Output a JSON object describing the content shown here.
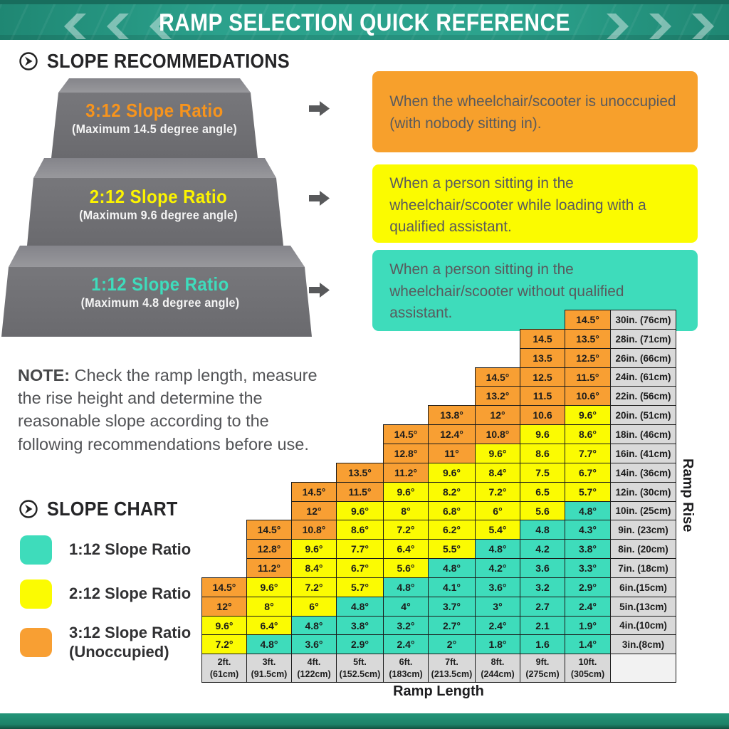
{
  "banner": {
    "title": "RAMP SELECTION QUICK REFERENCE"
  },
  "sections": {
    "recommendations": {
      "title": "SLOPE RECOMMEDATIONS"
    },
    "chart": {
      "title": "SLOPE CHART"
    }
  },
  "steps": [
    {
      "title": "3:12 Slope Ratio",
      "subtitle": "(Maximum 14.5 degree angle)",
      "title_color": "#F7941D"
    },
    {
      "title": "2:12 Slope Ratio",
      "subtitle": "(Maximum 9.6 degree angle)",
      "title_color": "#FCF400"
    },
    {
      "title": "1:12 Slope Ratio",
      "subtitle": "(Maximum 4.8 degree angle)",
      "title_color": "#3EDCBC"
    }
  ],
  "boxes": [
    {
      "color_name": "orange",
      "bg": "#F7A02C",
      "text": "When the wheelchair/scooter is unoccupied\n(with nobody sitting in)."
    },
    {
      "color_name": "yellow",
      "bg": "#FBFB00",
      "text": "When a person sitting in the\nwheelchair/scooter while loading with a\nqualified assistant."
    },
    {
      "color_name": "teal",
      "bg": "#3EDCBB",
      "text": "When a person sitting in the\nwheelchair/scooter without qualified\nassistant."
    }
  ],
  "note": {
    "label": "NOTE:",
    "body": " Check the ramp length, measure\nthe rise height and determine the\nreasonable slope according to the\nfollowing recommendations before use."
  },
  "chart_data": {
    "type": "heatmap",
    "title": "Slope Chart",
    "xlabel": "Ramp Length",
    "ylabel": "Ramp Rise",
    "x_categories": [
      "2ft. (61cm)",
      "3ft. (91.5cm)",
      "4ft. (122cm)",
      "5ft. (152.5cm)",
      "6ft. (183cm)",
      "7ft. (213.5cm)",
      "8ft. (244cm)",
      "9ft. (275cm)",
      "10ft. (305cm)"
    ],
    "legend": [
      {
        "color": "teal",
        "hex": "#3EDCBB",
        "label": "1:12 Slope Ratio"
      },
      {
        "color": "yellow",
        "hex": "#FBFB02",
        "label": "2:12 Slope Ratio"
      },
      {
        "color": "orange",
        "hex": "#F89F33",
        "label": "3:12 Slope Ratio (Unoccupied)"
      }
    ],
    "colors": {
      "o": "#F89F33",
      "y": "#FBFB02",
      "t": "#3EDCBB",
      "head": "#D9D9D9",
      "corner": "#F2F2F2"
    },
    "rows": [
      {
        "rise": "30in. (76cm)",
        "start": 8,
        "cells": [
          [
            "14.5°",
            "o"
          ]
        ]
      },
      {
        "rise": "28in. (71cm)",
        "start": 7,
        "cells": [
          [
            "14.5",
            "o"
          ],
          [
            "13.5°",
            "o"
          ]
        ]
      },
      {
        "rise": "26in. (66cm)",
        "start": 7,
        "cells": [
          [
            "13.5",
            "o"
          ],
          [
            "12.5°",
            "o"
          ]
        ]
      },
      {
        "rise": "24in. (61cm)",
        "start": 6,
        "cells": [
          [
            "14.5°",
            "o"
          ],
          [
            "12.5",
            "o"
          ],
          [
            "11.5°",
            "o"
          ]
        ]
      },
      {
        "rise": "22in. (56cm)",
        "start": 6,
        "cells": [
          [
            "13.2°",
            "o"
          ],
          [
            "11.5",
            "o"
          ],
          [
            "10.6°",
            "o"
          ]
        ]
      },
      {
        "rise": "20in. (51cm)",
        "start": 5,
        "cells": [
          [
            "13.8°",
            "o"
          ],
          [
            "12°",
            "o"
          ],
          [
            "10.6",
            "o"
          ],
          [
            "9.6°",
            "y"
          ]
        ]
      },
      {
        "rise": "18in. (46cm)",
        "start": 4,
        "cells": [
          [
            "14.5°",
            "o"
          ],
          [
            "12.4°",
            "o"
          ],
          [
            "10.8°",
            "o"
          ],
          [
            "9.6",
            "y"
          ],
          [
            "8.6°",
            "y"
          ]
        ]
      },
      {
        "rise": "16in. (41cm)",
        "start": 4,
        "cells": [
          [
            "12.8°",
            "o"
          ],
          [
            "11°",
            "o"
          ],
          [
            "9.6°",
            "y"
          ],
          [
            "8.6",
            "y"
          ],
          [
            "7.7°",
            "y"
          ]
        ]
      },
      {
        "rise": "14in. (36cm)",
        "start": 3,
        "cells": [
          [
            "13.5°",
            "o"
          ],
          [
            "11.2°",
            "o"
          ],
          [
            "9.6°",
            "y"
          ],
          [
            "8.4°",
            "y"
          ],
          [
            "7.5",
            "y"
          ],
          [
            "6.7°",
            "y"
          ]
        ]
      },
      {
        "rise": "12in. (30cm)",
        "start": 2,
        "cells": [
          [
            "14.5°",
            "o"
          ],
          [
            "11.5°",
            "o"
          ],
          [
            "9.6°",
            "y"
          ],
          [
            "8.2°",
            "y"
          ],
          [
            "7.2°",
            "y"
          ],
          [
            "6.5",
            "y"
          ],
          [
            "5.7°",
            "y"
          ]
        ]
      },
      {
        "rise": "10in. (25cm)",
        "start": 2,
        "cells": [
          [
            "12°",
            "o"
          ],
          [
            "9.6°",
            "y"
          ],
          [
            "8°",
            "y"
          ],
          [
            "6.8°",
            "y"
          ],
          [
            "6°",
            "y"
          ],
          [
            "5.6",
            "y"
          ],
          [
            "4.8°",
            "t"
          ]
        ]
      },
      {
        "rise": "9in. (23cm)",
        "start": 1,
        "cells": [
          [
            "14.5°",
            "o"
          ],
          [
            "10.8°",
            "o"
          ],
          [
            "8.6°",
            "y"
          ],
          [
            "7.2°",
            "y"
          ],
          [
            "6.2°",
            "y"
          ],
          [
            "5.4°",
            "y"
          ],
          [
            "4.8",
            "t"
          ],
          [
            "4.3°",
            "t"
          ]
        ]
      },
      {
        "rise": "8in. (20cm)",
        "start": 1,
        "cells": [
          [
            "12.8°",
            "o"
          ],
          [
            "9.6°",
            "y"
          ],
          [
            "7.7°",
            "y"
          ],
          [
            "6.4°",
            "y"
          ],
          [
            "5.5°",
            "y"
          ],
          [
            "4.8°",
            "t"
          ],
          [
            "4.2",
            "t"
          ],
          [
            "3.8°",
            "t"
          ]
        ]
      },
      {
        "rise": "7in. (18cm)",
        "start": 1,
        "cells": [
          [
            "11.2°",
            "o"
          ],
          [
            "8.4°",
            "y"
          ],
          [
            "6.7°",
            "y"
          ],
          [
            "5.6°",
            "y"
          ],
          [
            "4.8°",
            "t"
          ],
          [
            "4.2°",
            "t"
          ],
          [
            "3.6",
            "t"
          ],
          [
            "3.3°",
            "t"
          ]
        ]
      },
      {
        "rise": "6in.(15cm)",
        "start": 0,
        "cells": [
          [
            "14.5°",
            "o"
          ],
          [
            "9.6°",
            "y"
          ],
          [
            "7.2°",
            "y"
          ],
          [
            "5.7°",
            "y"
          ],
          [
            "4.8°",
            "t"
          ],
          [
            "4.1°",
            "t"
          ],
          [
            "3.6°",
            "t"
          ],
          [
            "3.2",
            "t"
          ],
          [
            "2.9°",
            "t"
          ]
        ]
      },
      {
        "rise": "5in.(13cm)",
        "start": 0,
        "cells": [
          [
            "12°",
            "o"
          ],
          [
            "8°",
            "y"
          ],
          [
            "6°",
            "y"
          ],
          [
            "4.8°",
            "t"
          ],
          [
            "4°",
            "t"
          ],
          [
            "3.7°",
            "t"
          ],
          [
            "3°",
            "t"
          ],
          [
            "2.7",
            "t"
          ],
          [
            "2.4°",
            "t"
          ]
        ]
      },
      {
        "rise": "4in.(10cm)",
        "start": 0,
        "cells": [
          [
            "9.6°",
            "y"
          ],
          [
            "6.4°",
            "y"
          ],
          [
            "4.8°",
            "t"
          ],
          [
            "3.8°",
            "t"
          ],
          [
            "3.2°",
            "t"
          ],
          [
            "2.7°",
            "t"
          ],
          [
            "2.4°",
            "t"
          ],
          [
            "2.1",
            "t"
          ],
          [
            "1.9°",
            "t"
          ]
        ]
      },
      {
        "rise": "3in.(8cm)",
        "start": 0,
        "cells": [
          [
            "7.2°",
            "y"
          ],
          [
            "4.8°",
            "t"
          ],
          [
            "3.6°",
            "t"
          ],
          [
            "2.9°",
            "t"
          ],
          [
            "2.4°",
            "t"
          ],
          [
            "2°",
            "t"
          ],
          [
            "1.8°",
            "t"
          ],
          [
            "1.6",
            "t"
          ],
          [
            "1.4°",
            "t"
          ]
        ]
      }
    ]
  }
}
